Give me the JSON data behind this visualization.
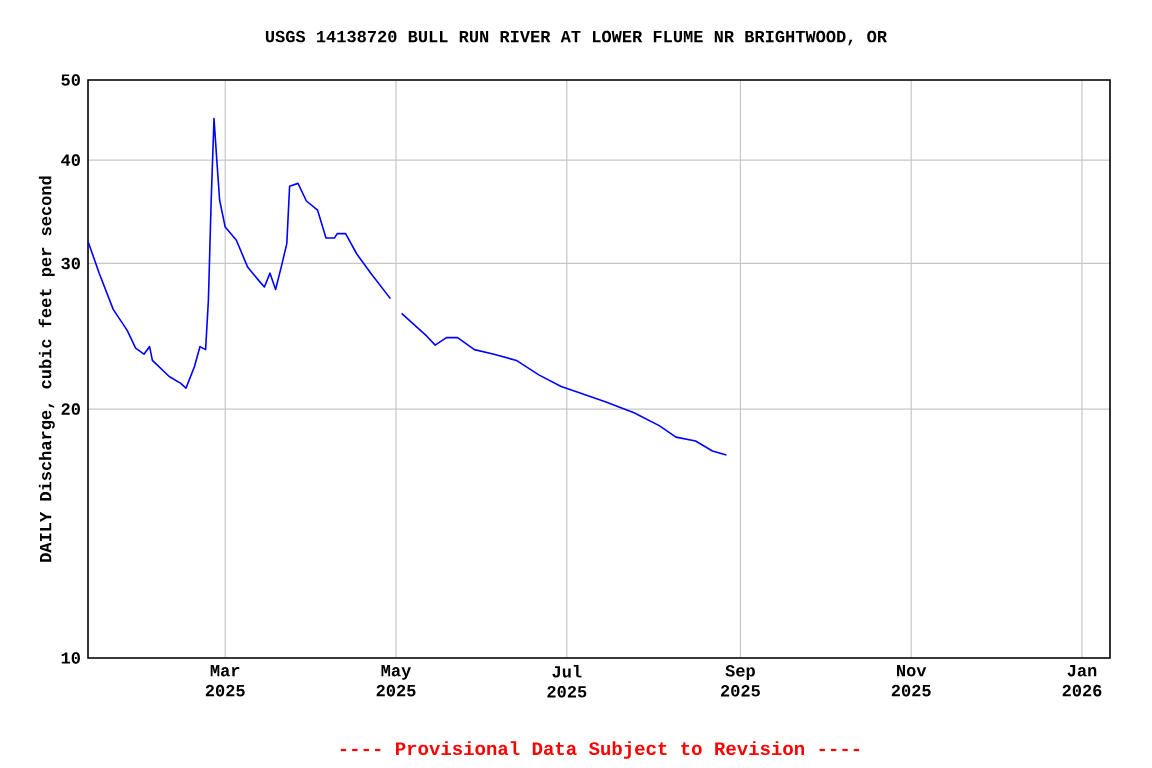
{
  "chart_data": {
    "type": "line",
    "title": "USGS 14138720 BULL RUN RIVER AT LOWER FLUME NR BRIGHTWOOD, OR",
    "ylabel": "DAILY Discharge, cubic feet per second",
    "annotations": [
      "---- Provisional Data Subject to Revision ----"
    ],
    "log": "y",
    "grid": true,
    "marker": "none",
    "line_style": "solid",
    "xlim": [
      "2025-01-11",
      "2026-01-11"
    ],
    "xticks": [
      {
        "value": "2025-03-01",
        "label": "Mar 2025"
      },
      {
        "value": "2025-05-01",
        "label": "May 2025"
      },
      {
        "value": "2025-07-01",
        "label": "Jul 2025"
      },
      {
        "value": "2025-09-01",
        "label": "Sep 2025"
      },
      {
        "value": "2025-11-01",
        "label": "Nov 2025"
      },
      {
        "value": "2026-01-01",
        "label": "Jan 2026"
      }
    ],
    "ylim": [
      10,
      50
    ],
    "yticks": [
      10,
      20,
      30,
      40,
      50
    ],
    "series": [
      {
        "color": "#0000ff",
        "x": [
          "2025-01-11",
          "2025-01-15",
          "2025-01-20",
          "2025-01-25",
          "2025-01-28",
          "2025-01-31",
          "2025-02-02",
          "2025-02-03",
          "2025-02-09",
          "2025-02-13",
          "2025-02-15",
          "2025-02-18",
          "2025-02-20",
          "2025-02-22",
          "2025-02-23",
          "2025-02-24",
          "2025-02-25",
          "2025-02-26",
          "2025-02-27",
          "2025-03-01",
          "2025-03-05",
          "2025-03-09",
          "2025-03-13",
          "2025-03-15",
          "2025-03-17",
          "2025-03-19",
          "2025-03-21",
          "2025-03-23",
          "2025-03-24",
          "2025-03-27",
          "2025-03-30",
          "2025-04-03",
          "2025-04-06",
          "2025-04-09",
          "2025-04-10",
          "2025-04-13",
          "2025-04-17",
          "2025-04-22",
          "2025-04-29",
          "2025-05-01",
          "2025-05-03",
          "2025-05-12",
          "2025-05-15",
          "2025-05-19",
          "2025-05-23",
          "2025-05-29",
          "2025-06-05",
          "2025-06-13",
          "2025-06-21",
          "2025-06-29",
          "2025-07-06",
          "2025-07-15",
          "2025-07-25",
          "2025-08-03",
          "2025-08-09",
          "2025-08-16",
          "2025-08-22",
          "2025-08-27"
        ],
        "values": [
          31.9,
          29.2,
          26.4,
          24.9,
          23.7,
          23.3,
          23.8,
          22.9,
          21.9,
          21.5,
          21.2,
          22.5,
          23.8,
          23.6,
          27.1,
          35.8,
          44.9,
          40.0,
          35.8,
          33.2,
          32.0,
          29.7,
          28.6,
          28.1,
          29.2,
          27.9,
          29.7,
          31.7,
          37.2,
          37.5,
          35.7,
          34.8,
          32.2,
          32.2,
          32.6,
          32.6,
          30.8,
          29.2,
          27.2,
          null,
          26.1,
          24.5,
          23.9,
          24.4,
          24.4,
          23.6,
          23.3,
          22.9,
          22.0,
          21.3,
          20.9,
          20.4,
          19.8,
          19.1,
          18.5,
          18.3,
          17.8,
          17.6
        ]
      }
    ]
  }
}
